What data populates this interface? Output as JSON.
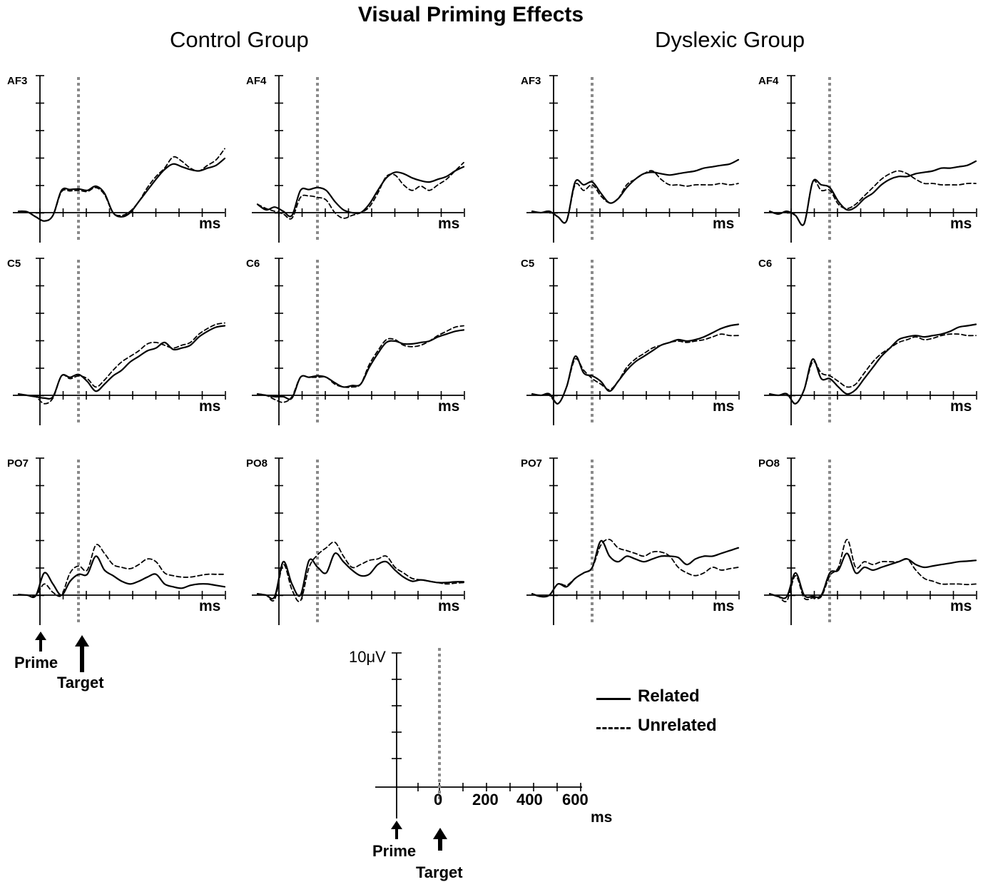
{
  "title": "Visual Priming Effects",
  "groups": {
    "control": "Control Group",
    "dyslexic": "Dyslexic Group"
  },
  "x_unit": "ms",
  "arrows": {
    "prime": "Prime",
    "target": "Target"
  },
  "legend": {
    "related": "Related",
    "unrelated": "Unrelated"
  },
  "scale": {
    "y_label": "10μV",
    "x_ticks": [
      "0",
      "200",
      "400",
      "600"
    ],
    "x_unit": "ms"
  },
  "colors": {
    "trace": "#000000",
    "target_line": "#8a8a8a"
  },
  "chart_data": {
    "type": "line",
    "title": "Visual Priming Effects",
    "xlabel": "ms",
    "ylabel": "μV",
    "y_scale_bar": "10μV",
    "x_ticks": [
      0,
      200,
      400,
      600
    ],
    "target_onset_ms": 0,
    "prime_onset_ms": -150,
    "x_range_ms": [
      -150,
      650
    ],
    "legend": [
      "Related",
      "Unrelated"
    ],
    "panels": [
      {
        "group": "Control Group",
        "channel": "AF3",
        "related": [
          0.5,
          0.3,
          -1.5,
          -3,
          -1,
          8,
          8.3,
          8.5,
          8,
          9.5,
          7,
          0,
          -1.5,
          0,
          4,
          8,
          12,
          15.5,
          17.5,
          16.5,
          15.5,
          15,
          16,
          17,
          19.5
        ],
        "unrelated": [
          0.5,
          0.3,
          -1.5,
          -3,
          -1,
          7.5,
          7.8,
          8,
          7.6,
          9,
          6.5,
          0,
          -1,
          0.5,
          4,
          9,
          13,
          16,
          20,
          18.5,
          16,
          15,
          17,
          19,
          23
        ]
      },
      {
        "group": "Control Group",
        "channel": "AF4",
        "related": [
          3,
          1,
          2,
          0.5,
          -1,
          8,
          8.3,
          9,
          8,
          4,
          1,
          0,
          0,
          3,
          8,
          12.5,
          14.5,
          14,
          12.5,
          11.5,
          11,
          12,
          13,
          15,
          16.5
        ],
        "unrelated": [
          3,
          1.5,
          0.5,
          -0.5,
          -2,
          5.5,
          6,
          5.5,
          4.5,
          0,
          -2,
          -1,
          0,
          2,
          7,
          13,
          13.5,
          10,
          8,
          9.5,
          8,
          10,
          12,
          15,
          18
        ]
      },
      {
        "group": "Control Group",
        "channel": "C5",
        "related": [
          0.5,
          0,
          -0.5,
          -1,
          -0.5,
          7,
          6.5,
          7.5,
          5,
          1.5,
          4,
          7,
          9,
          12,
          14,
          16,
          17,
          19,
          16.5,
          17,
          18,
          21,
          23,
          24.5,
          25
        ],
        "unrelated": [
          0.5,
          0,
          -0.5,
          -3,
          -1,
          7,
          6,
          7,
          6,
          3,
          5.5,
          9,
          12,
          14,
          16,
          18.5,
          19,
          18,
          17,
          18,
          19,
          22,
          24,
          25.5,
          26
        ]
      },
      {
        "group": "Control Group",
        "channel": "C6",
        "related": [
          0.5,
          0,
          -0.5,
          -0.5,
          -1,
          6.5,
          6.5,
          7,
          6.5,
          4.5,
          3,
          3.5,
          4,
          10,
          15,
          19,
          19.5,
          18.5,
          18.5,
          19,
          19.5,
          21,
          22,
          23,
          23.5
        ],
        "unrelated": [
          0.5,
          0,
          -1.5,
          -2.5,
          -0.5,
          6.5,
          6.5,
          6.5,
          6.5,
          4,
          3,
          3,
          4,
          11,
          16,
          20,
          20,
          18,
          17.5,
          18,
          19.5,
          21.5,
          23,
          24.5,
          25
        ]
      },
      {
        "group": "Control Group",
        "channel": "PO7",
        "related": [
          0.2,
          0,
          -0.2,
          8,
          4,
          0,
          5,
          7.5,
          7.5,
          14,
          9,
          7,
          5,
          4,
          5,
          6.5,
          7.5,
          4,
          3,
          2.5,
          3.5,
          4,
          4,
          3.5,
          3
        ],
        "unrelated": [
          0.2,
          0,
          -0.2,
          4,
          1,
          0,
          8,
          10.5,
          9,
          18,
          15,
          11,
          10,
          9.5,
          11,
          13,
          12,
          8,
          7,
          6.5,
          6.5,
          7,
          7.5,
          7.5,
          7.5
        ]
      },
      {
        "group": "Control Group",
        "channel": "PO8",
        "related": [
          0.5,
          0,
          -0.5,
          12,
          4,
          0,
          12.5,
          10,
          8,
          15,
          12,
          9,
          7,
          7.5,
          11,
          12,
          9,
          6.5,
          5,
          5.5,
          5,
          4.5,
          4.5,
          4.8,
          4.8
        ],
        "unrelated": [
          0.5,
          0,
          -1.5,
          11,
          2,
          -2,
          10,
          14.5,
          17,
          19,
          14,
          10,
          11,
          12.5,
          13,
          14,
          10,
          8,
          6,
          5.5,
          5,
          4.5,
          4,
          4.3,
          4.5
        ]
      },
      {
        "group": "Dyslexic Group",
        "channel": "AF3",
        "related": [
          0.5,
          0,
          0.5,
          -1.5,
          -3,
          11,
          10,
          11,
          7,
          3.5,
          5,
          9,
          12,
          14,
          14.5,
          14,
          13.5,
          14,
          14.5,
          15,
          16,
          16.5,
          17,
          17.5,
          19
        ],
        "unrelated": [
          0.5,
          0,
          0.5,
          -1.5,
          -3,
          10,
          8,
          10,
          6,
          3.5,
          5,
          10,
          12,
          14,
          15,
          12,
          10,
          10,
          9.5,
          10,
          10,
          10,
          10.5,
          10,
          10.5
        ]
      },
      {
        "group": "Dyslexic Group",
        "channel": "AF4",
        "related": [
          0.5,
          -0.5,
          0.5,
          -1,
          -4,
          11,
          10,
          9,
          4,
          1,
          2,
          5,
          7,
          10,
          12,
          13,
          13,
          14,
          14.5,
          15,
          16,
          16,
          16.5,
          17,
          18.5
        ],
        "unrelated": [
          0.5,
          -0.5,
          0.5,
          -1,
          -4,
          11,
          8,
          8,
          3,
          1.5,
          3,
          6,
          9,
          12,
          14,
          15,
          14,
          12,
          10.5,
          10.5,
          10,
          10,
          10,
          10.5,
          10.5
        ]
      },
      {
        "group": "Dyslexic Group",
        "channel": "C5",
        "related": [
          0.5,
          0,
          0.5,
          -3,
          3,
          14,
          8,
          7,
          5,
          1.5,
          5,
          9,
          12,
          14,
          16,
          18,
          19,
          20,
          19.5,
          20,
          21,
          22.5,
          24,
          25,
          25.5
        ],
        "unrelated": [
          0.5,
          0,
          0,
          -3,
          3,
          13,
          9,
          6,
          4,
          2,
          5,
          10,
          13,
          15,
          17,
          18,
          19,
          19.5,
          19,
          19.5,
          20,
          21,
          22,
          21.5,
          21.5
        ]
      },
      {
        "group": "Dyslexic Group",
        "channel": "C6",
        "related": [
          0.5,
          0,
          0.5,
          -3,
          2,
          13,
          6,
          6,
          3,
          0.5,
          2,
          6,
          10,
          14,
          17,
          20,
          21,
          21.5,
          21,
          21.5,
          22,
          23,
          24.5,
          25,
          25.5
        ],
        "unrelated": [
          0.5,
          0,
          0.5,
          -3,
          2,
          12,
          8,
          7,
          5,
          3,
          4,
          8,
          12,
          15,
          17,
          19,
          20,
          21,
          20,
          20.5,
          21.5,
          22,
          22,
          21.5,
          21.5
        ]
      },
      {
        "group": "Dyslexic Group",
        "channel": "PO7",
        "related": [
          0.5,
          -0.5,
          0,
          4,
          3,
          6,
          8,
          10,
          19.5,
          14,
          12,
          14,
          13,
          12,
          13,
          14,
          14,
          13.5,
          11,
          13,
          14,
          14,
          15,
          16,
          17
        ],
        "unrelated": [
          0.5,
          -0.5,
          0,
          4,
          3.5,
          6,
          8,
          10,
          18,
          20,
          17,
          16,
          15,
          14,
          15.5,
          15.5,
          14,
          10,
          8,
          7,
          8,
          10,
          9,
          9.5,
          10
        ]
      },
      {
        "group": "Dyslexic Group",
        "channel": "PO8",
        "related": [
          0.5,
          -0.5,
          -0.5,
          8,
          0,
          -0.5,
          0,
          8,
          9,
          15,
          8,
          10,
          9,
          10,
          11,
          12,
          13,
          11,
          10,
          10.5,
          11,
          11.5,
          12,
          12.2,
          12.5
        ],
        "unrelated": [
          0.5,
          -0.5,
          -2,
          7,
          -1,
          -1,
          -0.5,
          7,
          10,
          20,
          10,
          12,
          11,
          12,
          12,
          12,
          13,
          9,
          6,
          5,
          4,
          4,
          4,
          3.8,
          4
        ]
      }
    ]
  }
}
